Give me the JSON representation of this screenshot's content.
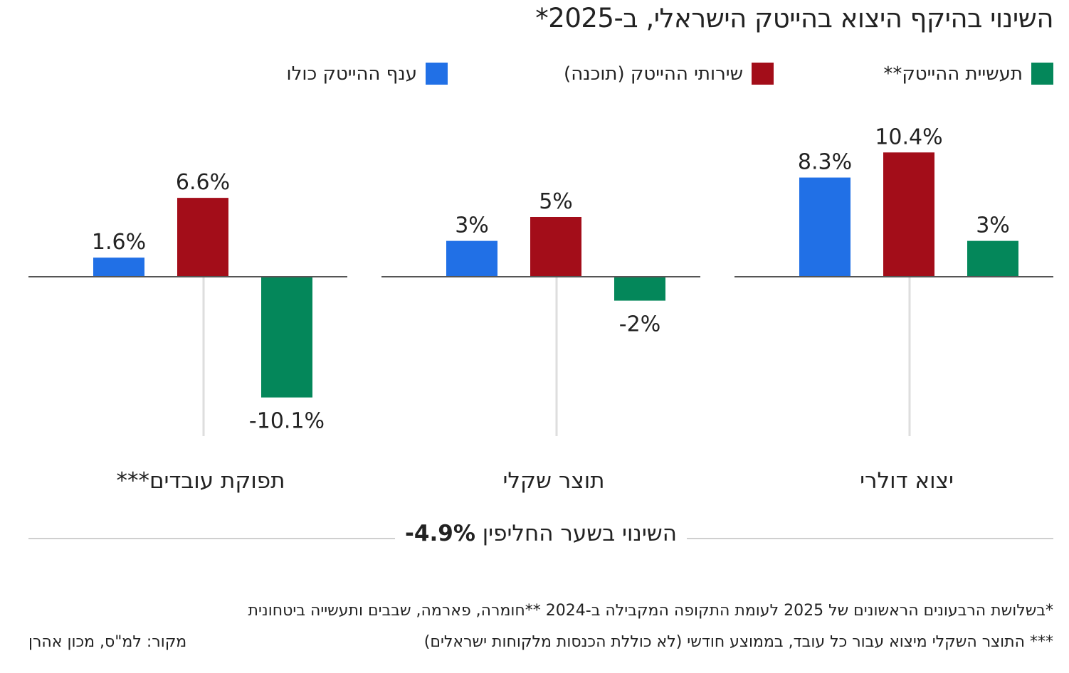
{
  "title": "השינוי בהיקף היצוא בהייטק הישראלי, ב-2025*",
  "legend": [
    {
      "label": "תעשיית ההייטק**",
      "color": "#04875a"
    },
    {
      "label": "שירותי ההייטק (תוכנה)",
      "color": "#a30d19"
    },
    {
      "label": "ענף ההייטק כולו",
      "color": "#2170e6"
    }
  ],
  "chart_data": {
    "type": "bar",
    "unit": "%",
    "categories": [
      "יצוא דולרי",
      "תוצר שקלי",
      "תפוקת עובדים***"
    ],
    "series": [
      {
        "name": "ענף ההייטק כולו",
        "color": "#2170e6",
        "values": [
          8.3,
          3,
          1.6
        ],
        "labels": [
          "8.3%",
          "3%",
          "1.6%"
        ]
      },
      {
        "name": "שירותי ההייטק (תוכנה)",
        "color": "#a30d19",
        "values": [
          10.4,
          5,
          6.6
        ],
        "labels": [
          "10.4%",
          "5%",
          "6.6%"
        ]
      },
      {
        "name": "תעשיית ההייטק**",
        "color": "#04875a",
        "values": [
          3,
          -2,
          -10.1
        ],
        "labels": [
          "3%",
          "-2%",
          "-10.1%"
        ]
      }
    ],
    "ylim": [
      -13.5,
      13
    ]
  },
  "fx": {
    "text": "השינוי בשער החליפין",
    "value": "-4.9%"
  },
  "footnotes": {
    "line1": "*בשלושת הרבעונים הראשונים של 2025 לעומת התקופה המקבילה ב-2024 **חומרה, פארמה, שבבים ותעשייה ביטחונית",
    "line2": "*** התוצר השקלי מיצוא עבור כל עובד, בממוצע חודשי (לא כוללת הכנסות מלקוחות ישראלים)",
    "source": "מקור: למ\"ס, מכון אהרן"
  }
}
